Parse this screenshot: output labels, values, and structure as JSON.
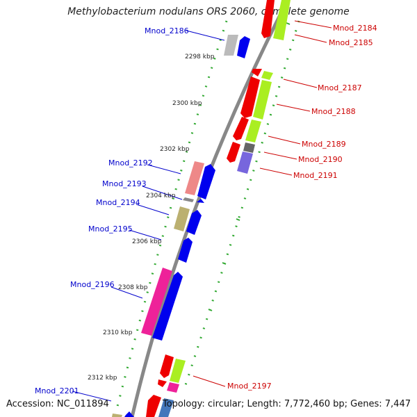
{
  "title": "Methylobacterium nodulans ORS 2060, complete genome",
  "accession": "Accession: NC_011894",
  "topology": "Topology: circular; Length: 7,772,460 bp; Genes: 7,447",
  "tick_labels": [
    "2298 kbp",
    "2300 kbp",
    "2302 kbp",
    "2304 kbp",
    "2306 kbp",
    "2308 kbp",
    "2310 kbp",
    "2312 kbp"
  ],
  "colors": {
    "backbone": "#888888",
    "forward_label": "#0000cc",
    "reverse_label": "#cc0000",
    "cds_forward": "#0000ee",
    "cds_reverse": "#ee0000",
    "dots": "#33aa33"
  },
  "genes": [
    {
      "name": "Mnod_2184",
      "strand": "-",
      "class_color": "#aaee22"
    },
    {
      "name": "Mnod_2185",
      "strand": "-",
      "class_color": "#aaee22"
    },
    {
      "name": "Mnod_2186",
      "strand": "+",
      "class_color": "#bbbbbb"
    },
    {
      "name": "Mnod_2187",
      "strand": "-",
      "class_color": "#aaee22"
    },
    {
      "name": "Mnod_2188",
      "strand": "-",
      "class_color": "#aaee22"
    },
    {
      "name": "Mnod_2189",
      "strand": "-",
      "class_color": "#aaee22"
    },
    {
      "name": "Mnod_2190",
      "strand": "-",
      "class_color": "#666666"
    },
    {
      "name": "Mnod_2191",
      "strand": "-",
      "class_color": "#7766dd"
    },
    {
      "name": "Mnod_2192",
      "strand": "+",
      "class_color": "#ee8888"
    },
    {
      "name": "Mnod_2193",
      "strand": "+",
      "class_color": "#888888"
    },
    {
      "name": "Mnod_2194",
      "strand": "+",
      "class_color": "#bbb070"
    },
    {
      "name": "Mnod_2195",
      "strand": "+",
      "class_color": ""
    },
    {
      "name": "Mnod_2196",
      "strand": "+",
      "class_color": "#ee2299"
    },
    {
      "name": "Mnod_2197",
      "strand": "-",
      "class_color": "#aaee22"
    },
    {
      "name": "Mnod_2201",
      "strand": "+",
      "class_color": "#bbb070"
    }
  ]
}
